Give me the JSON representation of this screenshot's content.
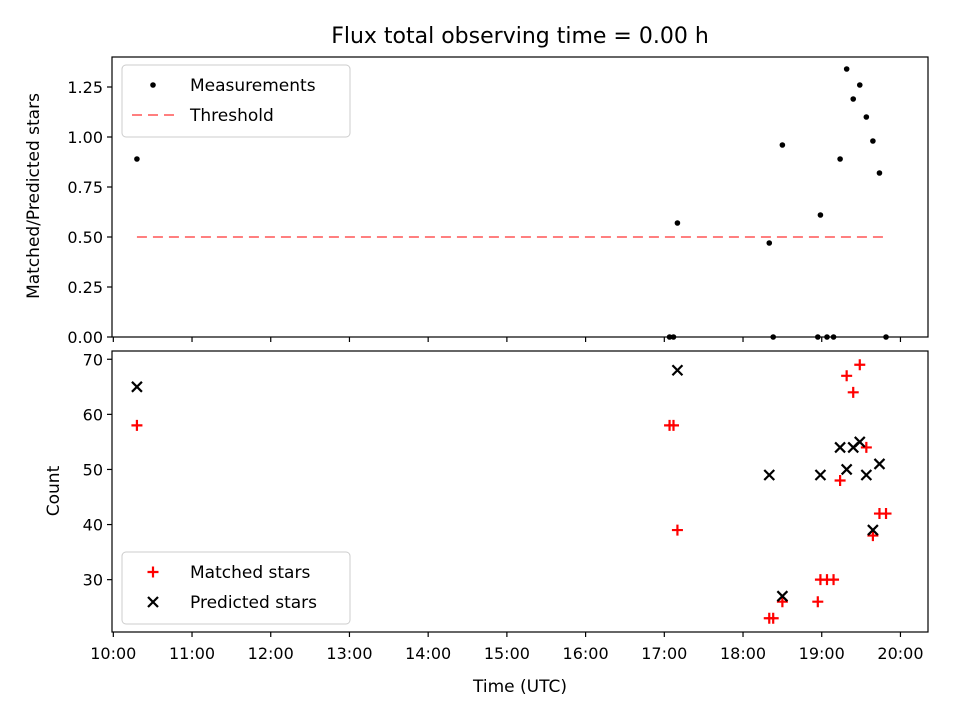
{
  "title": "Flux total observing time = 0.00 h",
  "xlabel": "Time (UTC)",
  "colors": {
    "measurement": "#000000",
    "threshold": "#ff7f7f",
    "matched": "#ff0000",
    "predicted": "#000000"
  },
  "chart_data": [
    {
      "type": "scatter",
      "panel": "top",
      "ylabel": "Matched/Predicted stars",
      "ylim": [
        0,
        1.4
      ],
      "xlim": [
        "09:59",
        "20:21"
      ],
      "yticks": [
        "0.00",
        "0.25",
        "0.50",
        "0.75",
        "1.00",
        "1.25"
      ],
      "legend": {
        "placement": "top-left",
        "entries": [
          "Measurements",
          "Threshold"
        ]
      },
      "series": [
        {
          "name": "Measurements",
          "marker": "dot",
          "points": [
            {
              "x": "10:18",
              "y": 0.89
            },
            {
              "x": "17:04",
              "y": 0.0
            },
            {
              "x": "17:07",
              "y": 0.0
            },
            {
              "x": "17:10",
              "y": 0.57
            },
            {
              "x": "18:20",
              "y": 0.47
            },
            {
              "x": "18:23",
              "y": 0.0
            },
            {
              "x": "18:30",
              "y": 0.96
            },
            {
              "x": "18:57",
              "y": 0.0
            },
            {
              "x": "18:59",
              "y": 0.61
            },
            {
              "x": "19:04",
              "y": 0.0
            },
            {
              "x": "19:09",
              "y": 0.0
            },
            {
              "x": "19:14",
              "y": 0.89
            },
            {
              "x": "19:19",
              "y": 1.34
            },
            {
              "x": "19:24",
              "y": 1.19
            },
            {
              "x": "19:29",
              "y": 1.26
            },
            {
              "x": "19:34",
              "y": 1.1
            },
            {
              "x": "19:39",
              "y": 0.98
            },
            {
              "x": "19:44",
              "y": 0.82
            },
            {
              "x": "19:49",
              "y": 0.0
            }
          ]
        },
        {
          "name": "Threshold",
          "style": "dashed",
          "points": [
            {
              "x": "10:18",
              "y": 0.5
            },
            {
              "x": "19:49",
              "y": 0.5
            }
          ]
        }
      ]
    },
    {
      "type": "scatter",
      "panel": "bottom",
      "ylabel": "Count",
      "ylim": [
        20.5,
        71.5
      ],
      "xlim": [
        "09:59",
        "20:21"
      ],
      "yticks": [
        "30",
        "40",
        "50",
        "60",
        "70"
      ],
      "xticks": [
        "10:00",
        "11:00",
        "12:00",
        "13:00",
        "14:00",
        "15:00",
        "16:00",
        "17:00",
        "18:00",
        "19:00",
        "20:00"
      ],
      "legend": {
        "placement": "bottom-left",
        "entries": [
          "Matched stars",
          "Predicted stars"
        ]
      },
      "series": [
        {
          "name": "Matched stars",
          "marker": "plus",
          "points": [
            {
              "x": "10:18",
              "y": 58
            },
            {
              "x": "17:04",
              "y": 58
            },
            {
              "x": "17:07",
              "y": 58
            },
            {
              "x": "17:10",
              "y": 39
            },
            {
              "x": "18:20",
              "y": 23
            },
            {
              "x": "18:23",
              "y": 23
            },
            {
              "x": "18:30",
              "y": 26
            },
            {
              "x": "18:57",
              "y": 26
            },
            {
              "x": "18:59",
              "y": 30
            },
            {
              "x": "19:04",
              "y": 30
            },
            {
              "x": "19:09",
              "y": 30
            },
            {
              "x": "19:14",
              "y": 48
            },
            {
              "x": "19:19",
              "y": 67
            },
            {
              "x": "19:24",
              "y": 64
            },
            {
              "x": "19:29",
              "y": 69
            },
            {
              "x": "19:34",
              "y": 54
            },
            {
              "x": "19:39",
              "y": 38
            },
            {
              "x": "19:44",
              "y": 42
            },
            {
              "x": "19:49",
              "y": 42
            }
          ]
        },
        {
          "name": "Predicted stars",
          "marker": "x",
          "points": [
            {
              "x": "10:18",
              "y": 65
            },
            {
              "x": "17:10",
              "y": 68
            },
            {
              "x": "18:20",
              "y": 49
            },
            {
              "x": "18:30",
              "y": 27
            },
            {
              "x": "18:59",
              "y": 49
            },
            {
              "x": "19:14",
              "y": 54
            },
            {
              "x": "19:19",
              "y": 50
            },
            {
              "x": "19:24",
              "y": 54
            },
            {
              "x": "19:29",
              "y": 55
            },
            {
              "x": "19:34",
              "y": 49
            },
            {
              "x": "19:39",
              "y": 39
            },
            {
              "x": "19:44",
              "y": 51
            }
          ]
        }
      ]
    }
  ]
}
